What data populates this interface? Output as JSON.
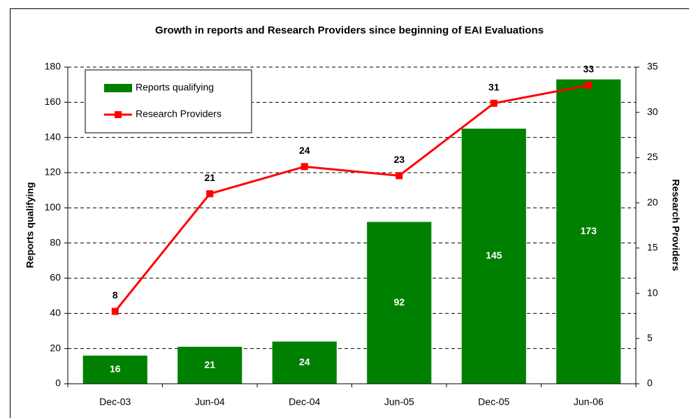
{
  "chart_data": {
    "type": "bar",
    "title": "Growth in reports and Research Providers since beginning of EAI Evaluations",
    "categories": [
      "Dec-03",
      "Jun-04",
      "Dec-04",
      "Jun-05",
      "Dec-05",
      "Jun-06"
    ],
    "series": [
      {
        "name": "Reports qualifying",
        "type": "bar",
        "color": "#008000",
        "values": [
          16,
          21,
          24,
          92,
          145,
          173
        ]
      },
      {
        "name": "Research Providers",
        "type": "line",
        "axis": "y2",
        "color": "#ff0000",
        "values": [
          8,
          21,
          24,
          23,
          31,
          33
        ]
      }
    ],
    "ylabel": "Reports qualifying",
    "y2label": "Research Providers",
    "ylim": [
      0,
      180
    ],
    "yticks": [
      0,
      20,
      40,
      60,
      80,
      100,
      120,
      140,
      160,
      180
    ],
    "y2lim": [
      0,
      35
    ],
    "y2ticks": [
      0,
      5,
      10,
      15,
      20,
      25,
      30,
      35
    ],
    "grid": true,
    "legend": "top-left"
  }
}
